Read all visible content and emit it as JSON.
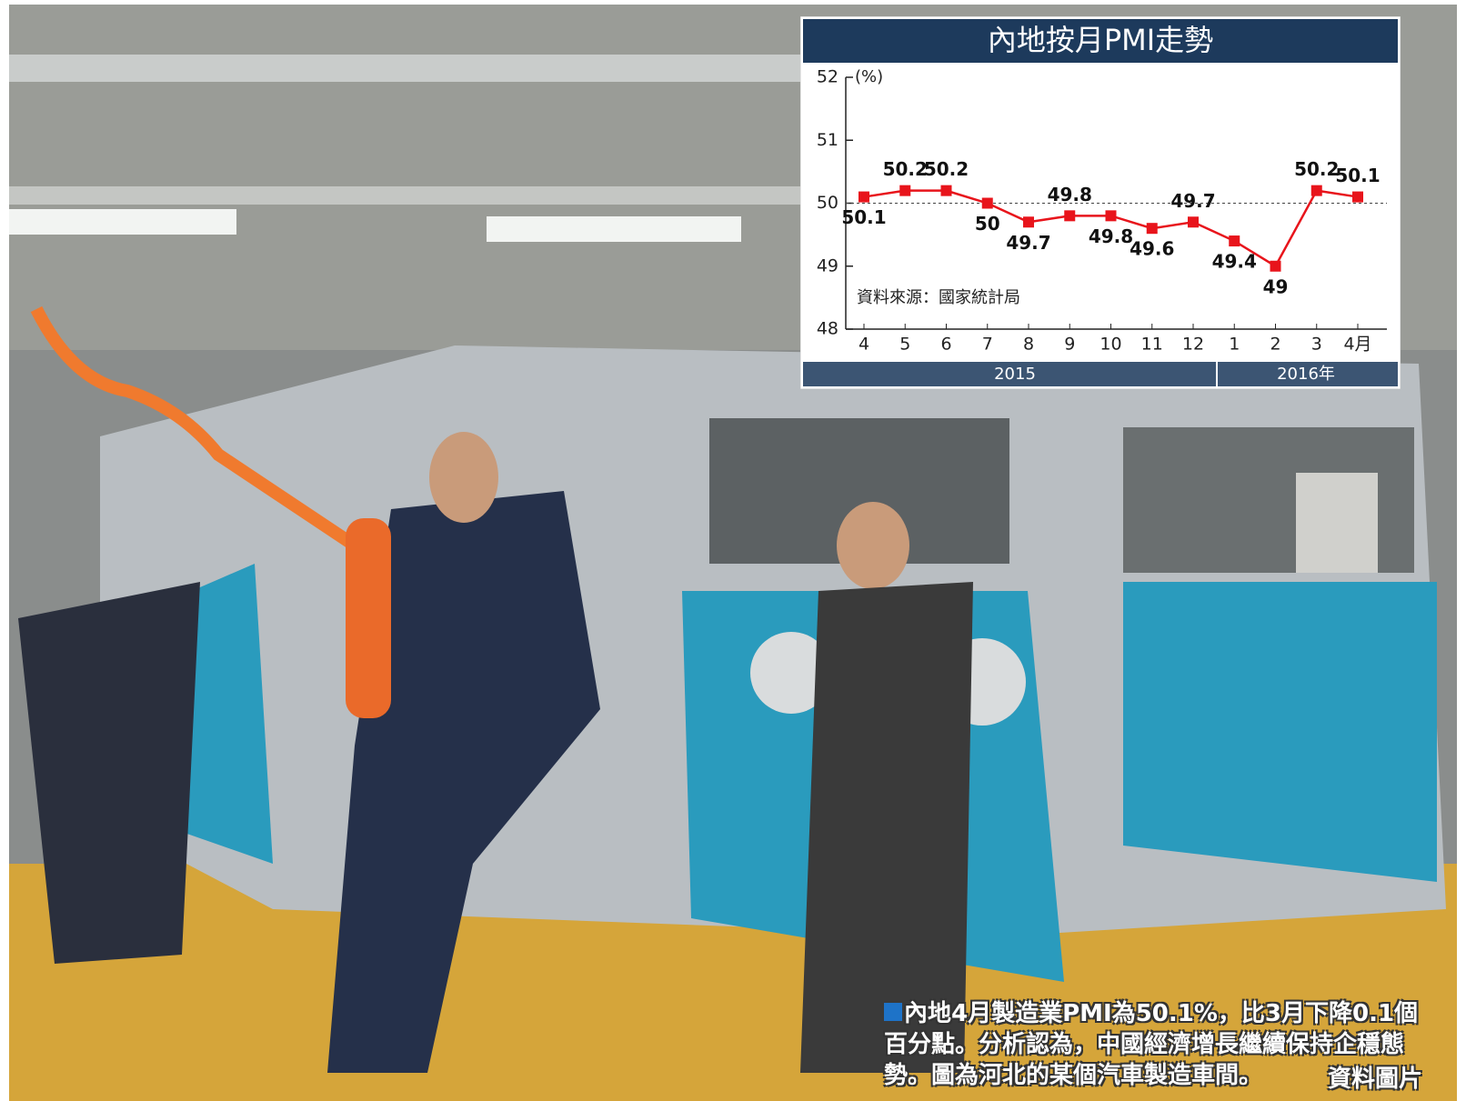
{
  "chart_data": {
    "type": "line",
    "title": "內地按月PMI走勢",
    "y_label": "(%)",
    "categories": [
      "4",
      "5",
      "6",
      "7",
      "8",
      "9",
      "10",
      "11",
      "12",
      "1",
      "2",
      "3",
      "4月"
    ],
    "x_groups": [
      "2015",
      "2016年"
    ],
    "series": [
      {
        "color": "#e8141b",
        "values": [
          50.1,
          50.2,
          50.2,
          50,
          49.7,
          49.8,
          49.8,
          49.6,
          49.7,
          49.4,
          49,
          50.2,
          50.1
        ]
      }
    ],
    "ylim": [
      48,
      52
    ],
    "yticks": [
      48,
      49,
      50,
      51,
      52
    ],
    "reference_line": 50,
    "source": "資料來源：國家統計局"
  },
  "caption": {
    "text": "內地4月製造業PMI為50.1%，比3月下降0.1個百分點。分析認為，中國經濟增長繼續保持企穩態勢。圖為河北的某個汽車製造車間。",
    "credit": "資料圖片"
  }
}
